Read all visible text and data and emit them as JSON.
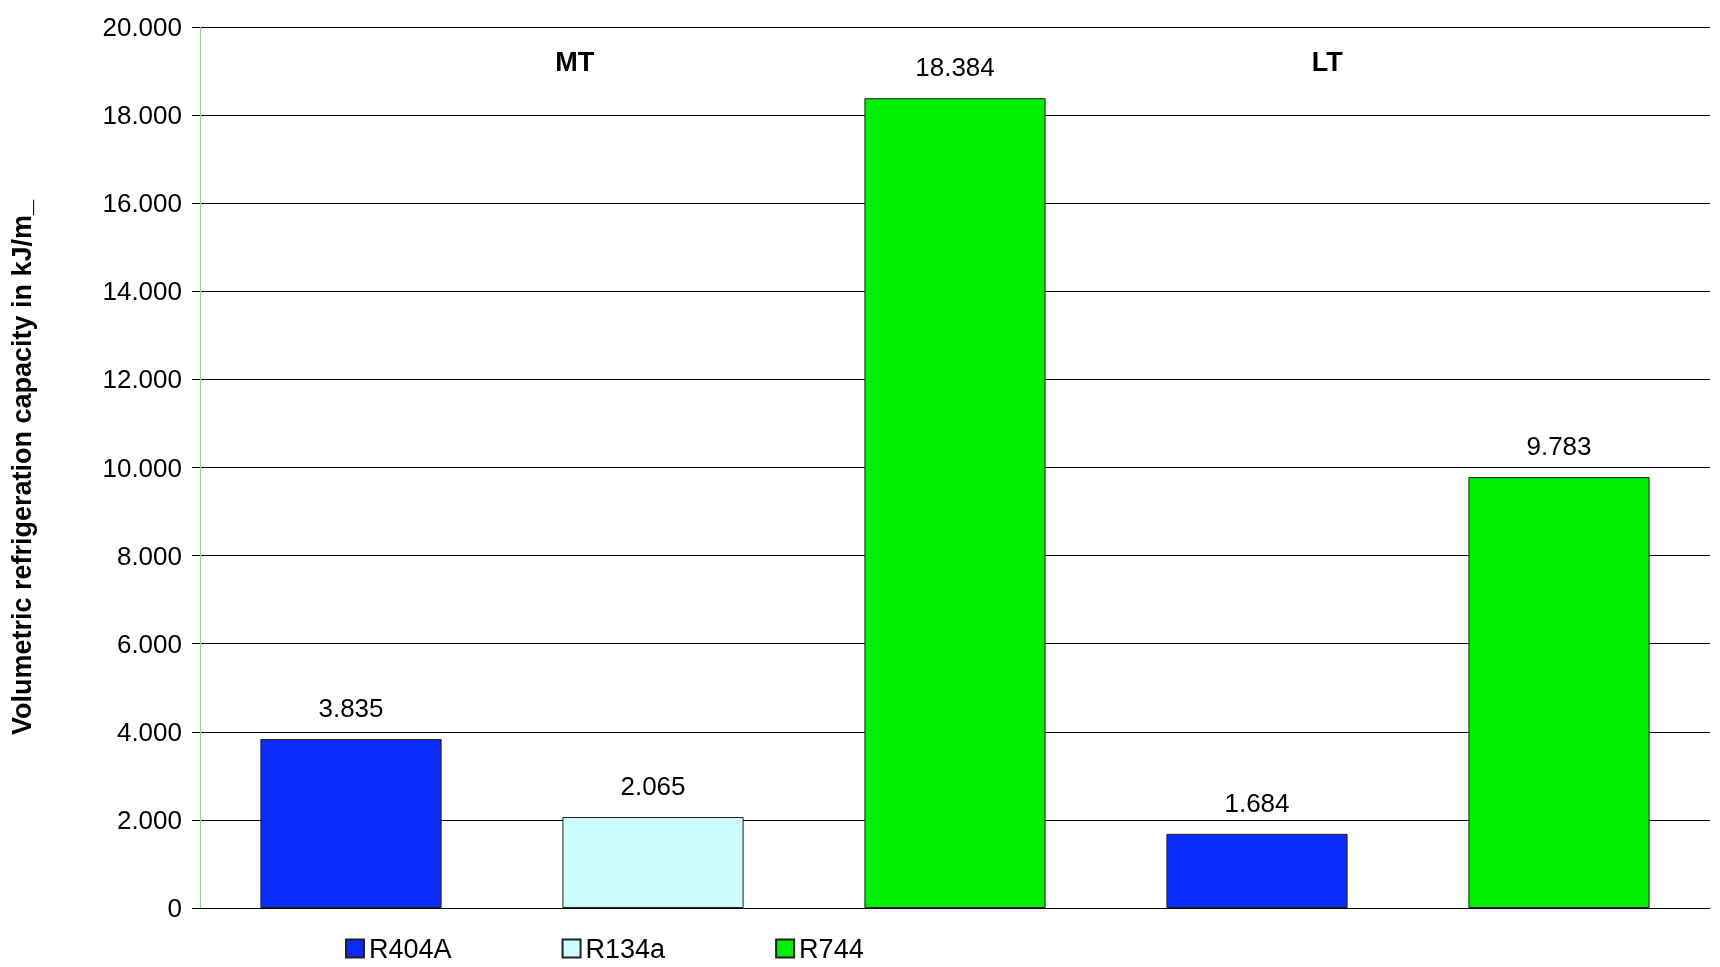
{
  "chart_data": {
    "type": "bar",
    "ylabel": "Volumetric refrigeration capacity in kJ/m_",
    "categories": [
      null,
      null,
      null,
      null,
      null
    ],
    "stacked": true,
    "tick_labels": "y",
    "grid": "y",
    "legend": "bottom left",
    "ylim": [
      0,
      20000
    ],
    "yticks": [
      {
        "value": 0,
        "label": "0"
      },
      {
        "value": 2000,
        "label": "2.000"
      },
      {
        "value": 4000,
        "label": "4.000"
      },
      {
        "value": 6000,
        "label": "6.000"
      },
      {
        "value": 8000,
        "label": "8.000"
      },
      {
        "value": 10000,
        "label": "10.000"
      },
      {
        "value": 12000,
        "label": "12.000"
      },
      {
        "value": 14000,
        "label": "14.000"
      },
      {
        "value": 16000,
        "label": "16.000"
      },
      {
        "value": 18000,
        "label": "18.000"
      },
      {
        "value": 20000,
        "label": "20.000"
      }
    ],
    "series": [
      {
        "name": "R404A",
        "color": "#0a2cff",
        "values": [
          3835,
          null,
          null,
          1684,
          null
        ],
        "value_labels": [
          "3.835",
          null,
          null,
          "1.684",
          null
        ]
      },
      {
        "name": "R134a",
        "color": "#ccfcfc",
        "values": [
          null,
          2065,
          null,
          null,
          null
        ],
        "value_labels": [
          null,
          "2.065",
          null,
          null,
          null
        ]
      },
      {
        "name": "R744",
        "color": "#00ee00",
        "values": [
          null,
          null,
          18384,
          null,
          9783
        ],
        "value_labels": [
          null,
          null,
          "18.384",
          null,
          "9.783"
        ]
      }
    ],
    "annotations": [
      "MT",
      "LT"
    ]
  }
}
